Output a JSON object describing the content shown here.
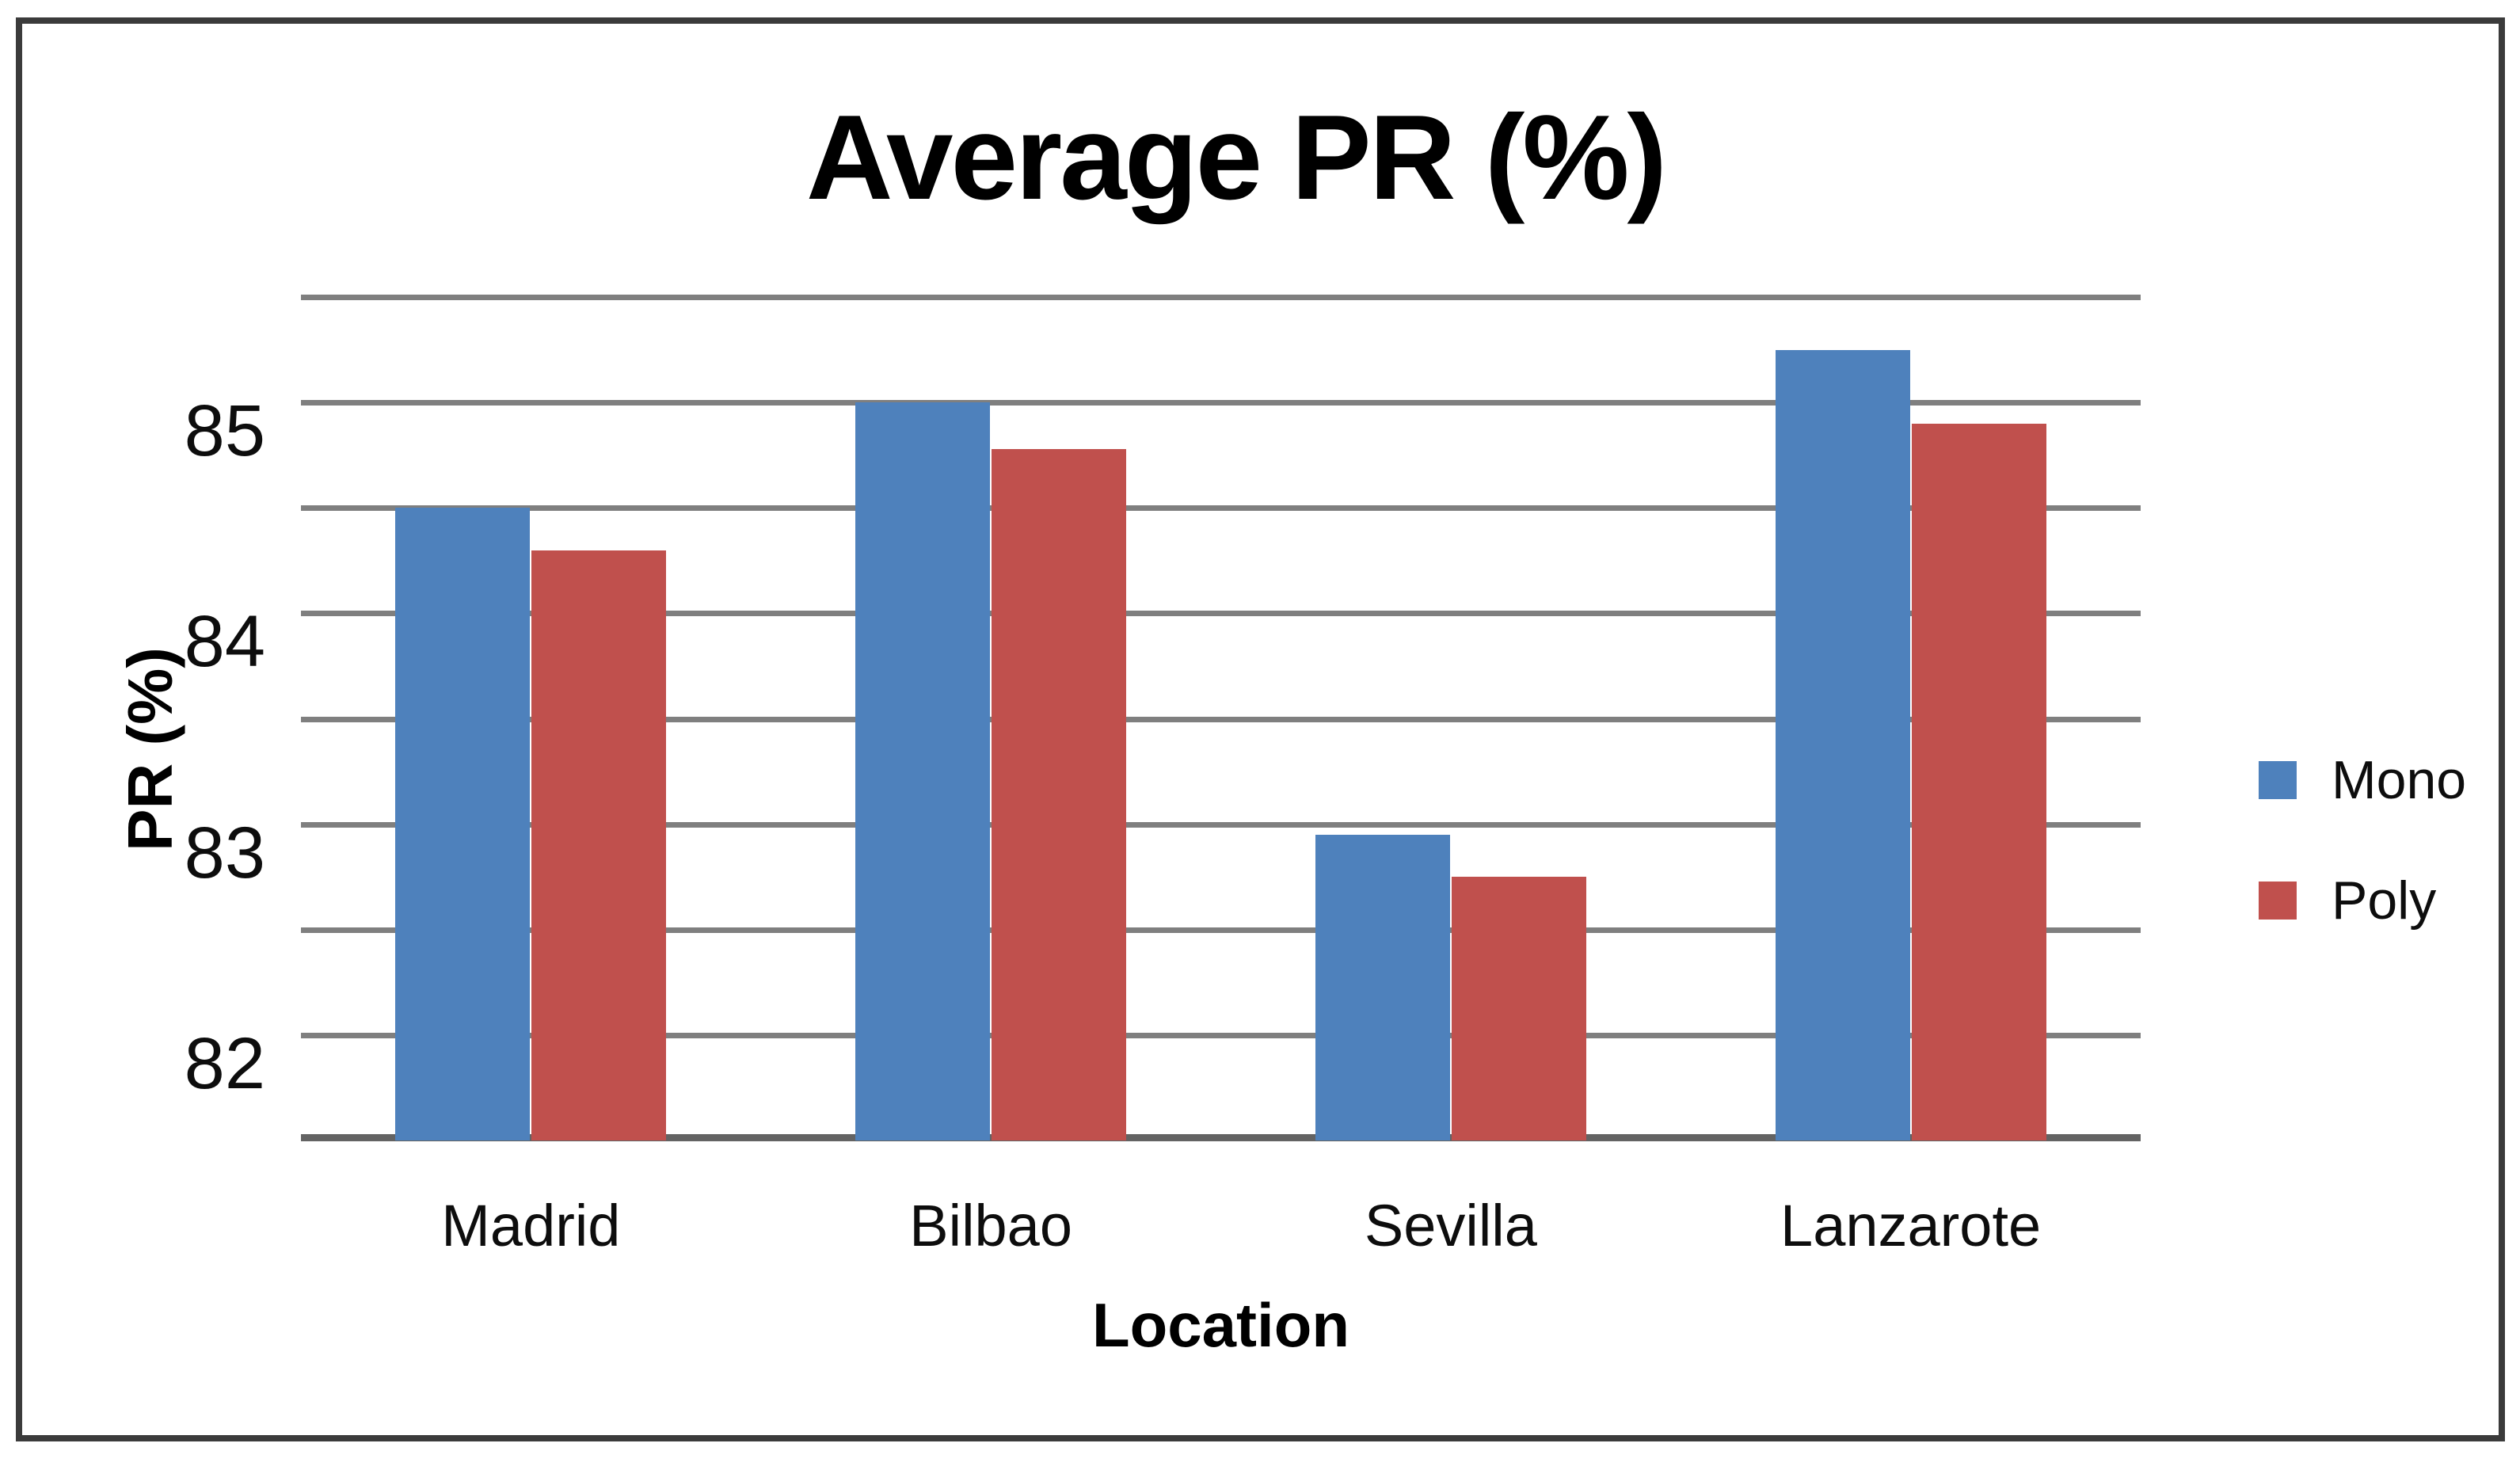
{
  "chart_data": {
    "type": "bar",
    "title": "Average PR (%)",
    "xlabel": "Location",
    "ylabel": "PR (%)",
    "categories": [
      "Madrid",
      "Bilbao",
      "Sevilla",
      "Lanzarote"
    ],
    "series": [
      {
        "name": "Mono",
        "color": "#4e81bc",
        "values": [
          84.5,
          85.0,
          82.95,
          85.25
        ]
      },
      {
        "name": "Poly",
        "color": "#c0504d",
        "values": [
          84.3,
          84.78,
          82.75,
          84.9
        ]
      }
    ],
    "y_axis": {
      "min": 81.5,
      "max": 85.5,
      "gridline_step": 0.5,
      "tick_labels": [
        "85",
        "84",
        "83",
        "82"
      ],
      "tick_values": [
        85,
        84,
        83,
        82
      ]
    },
    "legend": {
      "position": "right",
      "entries": [
        "Mono",
        "Poly"
      ]
    },
    "grid": true,
    "gridline_color": "#7f7f7f",
    "baseline_color": "#636363",
    "frame_color": "#3b3b3b"
  }
}
